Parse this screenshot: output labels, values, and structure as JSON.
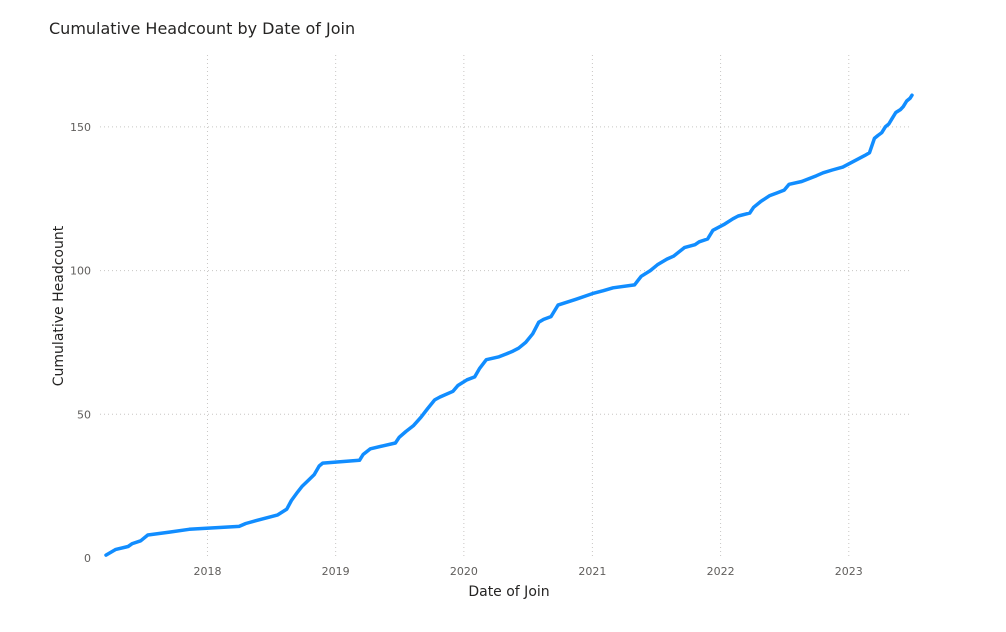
{
  "chart_data": {
    "type": "line",
    "title": "Cumulative Headcount by Date of Join",
    "xlabel": "Date of Join",
    "ylabel": "Cumulative Headcount",
    "x_ticks": [
      "2018",
      "2019",
      "2020",
      "2021",
      "2022",
      "2023"
    ],
    "y_ticks": [
      0,
      50,
      100,
      150
    ],
    "xlim": [
      "2017-03-01",
      "2023-06-30"
    ],
    "ylim": [
      0,
      175
    ],
    "grid": true,
    "legend": "none",
    "series": [
      {
        "color": "#118dff",
        "points": [
          [
            "2017-03-18",
            1
          ],
          [
            "2017-04-15",
            3
          ],
          [
            "2017-05-20",
            4
          ],
          [
            "2017-06-01",
            5
          ],
          [
            "2017-06-25",
            6
          ],
          [
            "2017-07-15",
            8
          ],
          [
            "2017-09-15",
            9
          ],
          [
            "2017-11-10",
            10
          ],
          [
            "2018-04-01",
            11
          ],
          [
            "2018-04-20",
            12
          ],
          [
            "2018-05-20",
            13
          ],
          [
            "2018-07-20",
            15
          ],
          [
            "2018-08-15",
            17
          ],
          [
            "2018-08-28",
            20
          ],
          [
            "2018-09-15",
            23
          ],
          [
            "2018-09-28",
            25
          ],
          [
            "2018-10-15",
            27
          ],
          [
            "2018-11-01",
            29
          ],
          [
            "2018-11-15",
            32
          ],
          [
            "2018-11-25",
            33
          ],
          [
            "2019-03-10",
            34
          ],
          [
            "2019-03-20",
            36
          ],
          [
            "2019-04-10",
            38
          ],
          [
            "2019-05-15",
            39
          ],
          [
            "2019-06-20",
            40
          ],
          [
            "2019-07-01",
            42
          ],
          [
            "2019-07-20",
            44
          ],
          [
            "2019-08-10",
            46
          ],
          [
            "2019-09-01",
            49
          ],
          [
            "2019-09-20",
            52
          ],
          [
            "2019-10-10",
            55
          ],
          [
            "2019-10-25",
            56
          ],
          [
            "2019-12-01",
            58
          ],
          [
            "2019-12-15",
            60
          ],
          [
            "2020-01-10",
            62
          ],
          [
            "2020-02-01",
            63
          ],
          [
            "2020-02-15",
            66
          ],
          [
            "2020-03-05",
            69
          ],
          [
            "2020-04-10",
            70
          ],
          [
            "2020-05-01",
            71
          ],
          [
            "2020-05-20",
            72
          ],
          [
            "2020-06-05",
            73
          ],
          [
            "2020-06-25",
            75
          ],
          [
            "2020-07-15",
            78
          ],
          [
            "2020-08-01",
            82
          ],
          [
            "2020-08-15",
            83
          ],
          [
            "2020-09-05",
            84
          ],
          [
            "2020-09-25",
            88
          ],
          [
            "2020-11-15",
            90
          ],
          [
            "2021-01-01",
            92
          ],
          [
            "2021-02-01",
            93
          ],
          [
            "2021-03-01",
            94
          ],
          [
            "2021-05-01",
            95
          ],
          [
            "2021-05-20",
            98
          ],
          [
            "2021-06-15",
            100
          ],
          [
            "2021-07-05",
            102
          ],
          [
            "2021-08-01",
            104
          ],
          [
            "2021-08-20",
            105
          ],
          [
            "2021-09-20",
            108
          ],
          [
            "2021-10-20",
            109
          ],
          [
            "2021-11-01",
            110
          ],
          [
            "2021-11-25",
            111
          ],
          [
            "2021-12-10",
            114
          ],
          [
            "2022-01-10",
            116
          ],
          [
            "2022-02-05",
            118
          ],
          [
            "2022-02-20",
            119
          ],
          [
            "2022-03-25",
            120
          ],
          [
            "2022-04-05",
            122
          ],
          [
            "2022-04-25",
            124
          ],
          [
            "2022-05-20",
            126
          ],
          [
            "2022-06-10",
            127
          ],
          [
            "2022-07-01",
            128
          ],
          [
            "2022-07-15",
            130
          ],
          [
            "2022-08-20",
            131
          ],
          [
            "2022-09-10",
            132
          ],
          [
            "2022-10-01",
            133
          ],
          [
            "2022-10-20",
            134
          ],
          [
            "2022-11-15",
            135
          ],
          [
            "2022-12-15",
            136
          ],
          [
            "2023-01-15",
            138
          ],
          [
            "2023-02-15",
            140
          ],
          [
            "2023-03-01",
            141
          ],
          [
            "2023-03-15",
            146
          ],
          [
            "2023-03-25",
            147
          ],
          [
            "2023-04-05",
            148
          ],
          [
            "2023-04-15",
            150
          ],
          [
            "2023-04-25",
            151
          ],
          [
            "2023-05-05",
            153
          ],
          [
            "2023-05-15",
            155
          ],
          [
            "2023-05-28",
            156
          ],
          [
            "2023-06-05",
            157
          ],
          [
            "2023-06-15",
            159
          ],
          [
            "2023-06-25",
            160
          ],
          [
            "2023-06-30",
            161
          ]
        ]
      }
    ]
  }
}
